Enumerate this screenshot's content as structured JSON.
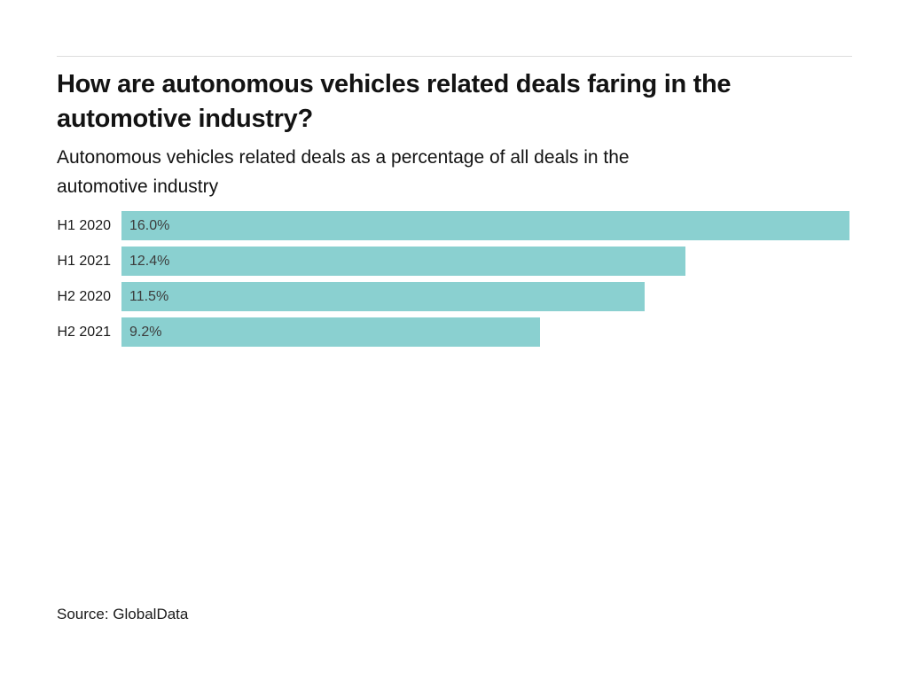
{
  "page": {
    "background": "#ffffff",
    "divider_color": "#dcdcdc"
  },
  "header": {
    "title": "How are autonomous vehicles related deals faring in the automotive industry?",
    "title_lines": [
      "How are autonomous vehicles related deals faring in the",
      "automotive industry?"
    ],
    "subtitle": "Autonomous vehicles related deals as a percentage of all deals in the automotive industry",
    "subtitle_lines": [
      "Autonomous vehicles related deals as a percentage of all deals in the",
      "automotive industry"
    ]
  },
  "chart_data": {
    "type": "bar",
    "orientation": "horizontal",
    "title": "How are autonomous vehicles related deals faring in the automotive industry?",
    "subtitle": "Autonomous vehicles related deals as a percentage of all deals in the automotive industry",
    "categories": [
      "H1 2020",
      "H1 2021",
      "H2 2020",
      "H2 2021"
    ],
    "values": [
      16.0,
      12.4,
      11.5,
      9.2
    ],
    "value_labels": [
      "16.0%",
      "12.4%",
      "11.5%",
      "9.2%"
    ],
    "xlabel": "",
    "ylabel": "",
    "xlim": [
      0,
      16.0
    ],
    "grid": false,
    "legend": false,
    "bar_color": "#8ad0d0",
    "value_label_position": "inside-start"
  },
  "footer": {
    "source": "Source: GlobalData"
  }
}
